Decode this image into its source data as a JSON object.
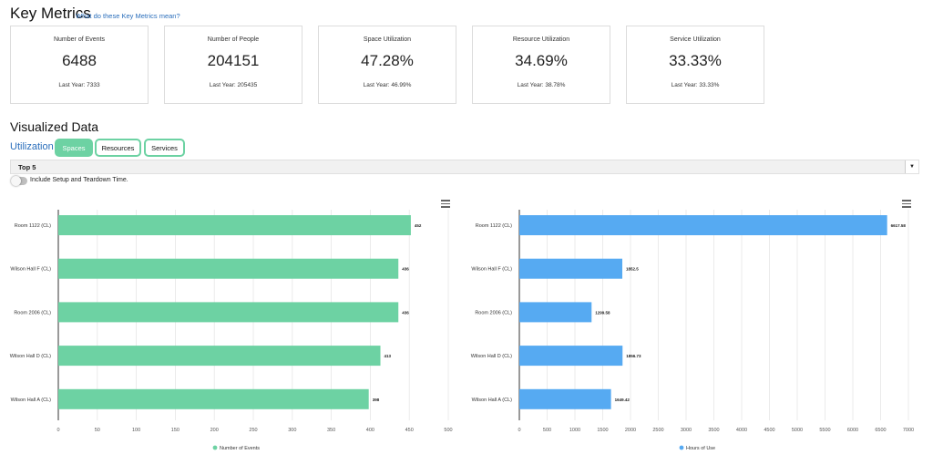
{
  "header": {
    "title": "Key Metrics",
    "help_link": "What do these Key Metrics mean?"
  },
  "metrics": [
    {
      "label": "Number of Events",
      "value": "6488",
      "last_year": "Last Year: 7333"
    },
    {
      "label": "Number of People",
      "value": "204151",
      "last_year": "Last Year: 205435"
    },
    {
      "label": "Space Utilization",
      "value": "47.28%",
      "last_year": "Last Year: 46.99%"
    },
    {
      "label": "Resource Utilization",
      "value": "34.69%",
      "last_year": "Last Year: 38.78%"
    },
    {
      "label": "Service Utilization",
      "value": "33.33%",
      "last_year": "Last Year: 33.33%"
    }
  ],
  "visualized": {
    "title": "Visualized Data",
    "utilization_label": "Utilization",
    "tabs": [
      {
        "label": "Spaces",
        "active": true
      },
      {
        "label": "Resources",
        "active": false
      },
      {
        "label": "Services",
        "active": false
      }
    ],
    "select": {
      "value": "Top 5"
    },
    "toggle": {
      "label": "Include Setup and Teardown Time.",
      "on": false
    }
  },
  "colors": {
    "green": "#6dd2a3",
    "blue": "#56aaf2",
    "link": "#2a6ebb"
  },
  "icons": {
    "chart_menu": "hamburger-menu-icon",
    "select_arrow": "caret-down-icon"
  },
  "chart_data": [
    {
      "type": "bar",
      "orientation": "horizontal",
      "categories": [
        "Room 1122 (CL)",
        "Wilson Hall F (CL)",
        "Room 2006 (CL)",
        "Wilson Hall D (CL)",
        "Wilson Hall A (CL)"
      ],
      "series": [
        {
          "name": "Number of Events",
          "values": [
            452,
            436,
            436,
            413,
            398
          ]
        }
      ],
      "data_labels": [
        "452",
        "436",
        "436",
        "413",
        "398"
      ],
      "xlim": [
        0,
        500
      ],
      "xticks": [
        0,
        50,
        100,
        150,
        200,
        250,
        300,
        350,
        400,
        450,
        500
      ],
      "grid": true,
      "legend": "bottom",
      "color": "#6dd2a3"
    },
    {
      "type": "bar",
      "orientation": "horizontal",
      "categories": [
        "Room 1122 (CL)",
        "Wilson Hall F (CL)",
        "Room 2006 (CL)",
        "Wilson Hall D (CL)",
        "Wilson Hall A (CL)"
      ],
      "series": [
        {
          "name": "Hours of Use",
          "values": [
            6617.58,
            1852.5,
            1299.58,
            1856.73,
            1649.42
          ]
        }
      ],
      "data_labels": [
        "6617.58",
        "1852.5",
        "1299.58",
        "1856.73",
        "1649.42"
      ],
      "xlim": [
        0,
        7000
      ],
      "xticks": [
        0,
        500,
        1000,
        1500,
        2000,
        2500,
        3000,
        3500,
        4000,
        4500,
        5000,
        5500,
        6000,
        6500,
        7000
      ],
      "grid": true,
      "legend": "bottom",
      "color": "#56aaf2"
    }
  ]
}
